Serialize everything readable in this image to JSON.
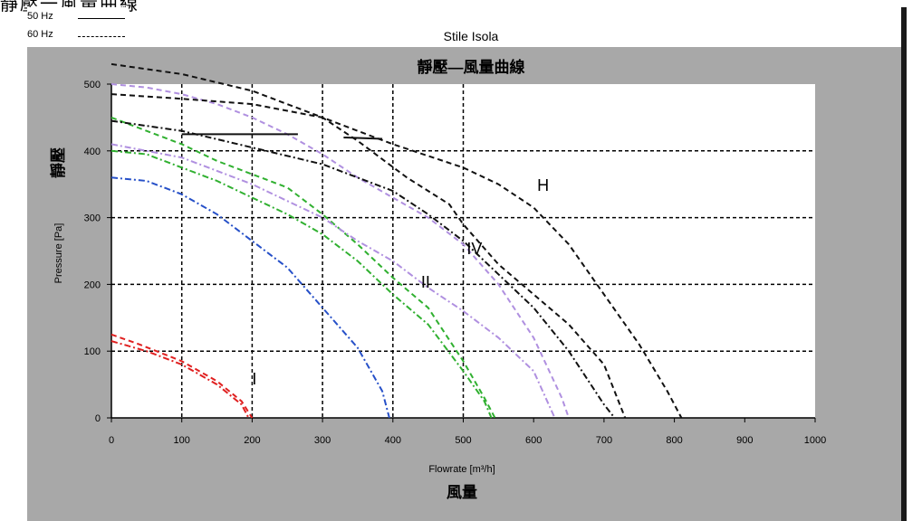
{
  "page_heading": "靜壓一風量曲線",
  "legend": [
    {
      "label": "50 Hz",
      "style": "solid"
    },
    {
      "label": "60 Hz",
      "style": "dashed"
    }
  ],
  "colors": {
    "panel": "#a8a8a8",
    "plot_bg": "#ffffff",
    "grid": "#000000"
  },
  "chart_data": {
    "type": "line",
    "subtitle": "Stile Isola",
    "title": "靜壓—風量曲線",
    "xlabel": "Flowrate [m³/h]",
    "xlabel_cn": "風量",
    "ylabel": "Pressure [Pa]",
    "ylabel_cn": "靜壓",
    "xlim": [
      0,
      1000
    ],
    "ylim": [
      0,
      500
    ],
    "xticks": [
      "0",
      "100",
      "200",
      "300",
      "400",
      "500",
      "600",
      "700",
      "800",
      "900",
      "1000"
    ],
    "yticks": [
      "0",
      "100",
      "200",
      "300",
      "400",
      "500"
    ],
    "grid": true,
    "curve_labels": [
      {
        "text": "I",
        "x": 200,
        "y": 50
      },
      {
        "text": "II",
        "x": 440,
        "y": 195
      },
      {
        "text": "IV",
        "x": 505,
        "y": 245
      },
      {
        "text": "H",
        "x": 605,
        "y": 340
      }
    ],
    "series": [
      {
        "color": "#e02020",
        "style": "dashed",
        "points": [
          [
            0,
            125
          ],
          [
            40,
            110
          ],
          [
            100,
            85
          ],
          [
            150,
            55
          ],
          [
            185,
            25
          ],
          [
            200,
            0
          ]
        ]
      },
      {
        "color": "#e02020",
        "style": "dashdot",
        "points": [
          [
            0,
            115
          ],
          [
            50,
            100
          ],
          [
            100,
            80
          ],
          [
            150,
            50
          ],
          [
            185,
            20
          ],
          [
            195,
            0
          ]
        ]
      },
      {
        "color": "#2650c8",
        "style": "dashdot",
        "points": [
          [
            0,
            360
          ],
          [
            50,
            355
          ],
          [
            100,
            335
          ],
          [
            150,
            305
          ],
          [
            200,
            265
          ],
          [
            250,
            225
          ],
          [
            300,
            165
          ],
          [
            350,
            105
          ],
          [
            385,
            40
          ],
          [
            395,
            0
          ]
        ]
      },
      {
        "color": "#30b030",
        "style": "dashed",
        "points": [
          [
            0,
            450
          ],
          [
            50,
            430
          ],
          [
            100,
            410
          ],
          [
            150,
            385
          ],
          [
            200,
            365
          ],
          [
            250,
            345
          ],
          [
            300,
            305
          ],
          [
            350,
            260
          ],
          [
            400,
            210
          ],
          [
            450,
            165
          ],
          [
            500,
            85
          ],
          [
            530,
            30
          ],
          [
            545,
            0
          ]
        ]
      },
      {
        "color": "#30b030",
        "style": "dashdot",
        "points": [
          [
            0,
            400
          ],
          [
            50,
            395
          ],
          [
            100,
            375
          ],
          [
            150,
            355
          ],
          [
            200,
            330
          ],
          [
            250,
            305
          ],
          [
            300,
            275
          ],
          [
            350,
            235
          ],
          [
            400,
            185
          ],
          [
            450,
            140
          ],
          [
            500,
            70
          ],
          [
            530,
            25
          ],
          [
            540,
            0
          ]
        ]
      },
      {
        "color": "#b090e0",
        "style": "dashed",
        "points": [
          [
            0,
            500
          ],
          [
            50,
            495
          ],
          [
            100,
            485
          ],
          [
            150,
            470
          ],
          [
            200,
            450
          ],
          [
            250,
            425
          ],
          [
            300,
            395
          ],
          [
            350,
            360
          ],
          [
            400,
            330
          ],
          [
            450,
            300
          ],
          [
            500,
            260
          ],
          [
            550,
            200
          ],
          [
            600,
            120
          ],
          [
            640,
            30
          ],
          [
            650,
            0
          ]
        ]
      },
      {
        "color": "#b090e0",
        "style": "dashdot",
        "points": [
          [
            0,
            410
          ],
          [
            50,
            400
          ],
          [
            100,
            390
          ],
          [
            150,
            370
          ],
          [
            200,
            350
          ],
          [
            250,
            325
          ],
          [
            300,
            300
          ],
          [
            350,
            265
          ],
          [
            400,
            235
          ],
          [
            450,
            195
          ],
          [
            500,
            160
          ],
          [
            550,
            120
          ],
          [
            600,
            70
          ],
          [
            630,
            0
          ]
        ]
      },
      {
        "color": "#111111",
        "style": "dashed",
        "points": [
          [
            0,
            530
          ],
          [
            100,
            515
          ],
          [
            200,
            490
          ],
          [
            300,
            450
          ],
          [
            350,
            415
          ],
          [
            420,
            360
          ],
          [
            480,
            320
          ],
          [
            500,
            290
          ],
          [
            550,
            230
          ],
          [
            600,
            185
          ],
          [
            650,
            140
          ],
          [
            700,
            80
          ],
          [
            730,
            0
          ]
        ]
      },
      {
        "color": "#111111",
        "style": "dashdot",
        "points": [
          [
            0,
            445
          ],
          [
            100,
            430
          ],
          [
            200,
            405
          ],
          [
            300,
            380
          ],
          [
            400,
            340
          ],
          [
            450,
            305
          ],
          [
            500,
            265
          ],
          [
            550,
            215
          ],
          [
            600,
            165
          ],
          [
            650,
            100
          ],
          [
            700,
            20
          ],
          [
            715,
            0
          ]
        ]
      },
      {
        "color": "#111111",
        "style": "dashed",
        "points": [
          [
            0,
            485
          ],
          [
            100,
            478
          ],
          [
            200,
            470
          ],
          [
            300,
            450
          ],
          [
            350,
            430
          ],
          [
            400,
            410
          ],
          [
            500,
            375
          ],
          [
            550,
            350
          ],
          [
            600,
            315
          ],
          [
            650,
            260
          ],
          [
            700,
            185
          ],
          [
            750,
            110
          ],
          [
            790,
            40
          ],
          [
            810,
            0
          ]
        ]
      },
      {
        "color": "#111111",
        "style": "solid",
        "points": [
          [
            100,
            425
          ],
          [
            265,
            425
          ]
        ]
      },
      {
        "color": "#111111",
        "style": "solid",
        "points": [
          [
            330,
            420
          ],
          [
            385,
            418
          ]
        ]
      }
    ]
  }
}
